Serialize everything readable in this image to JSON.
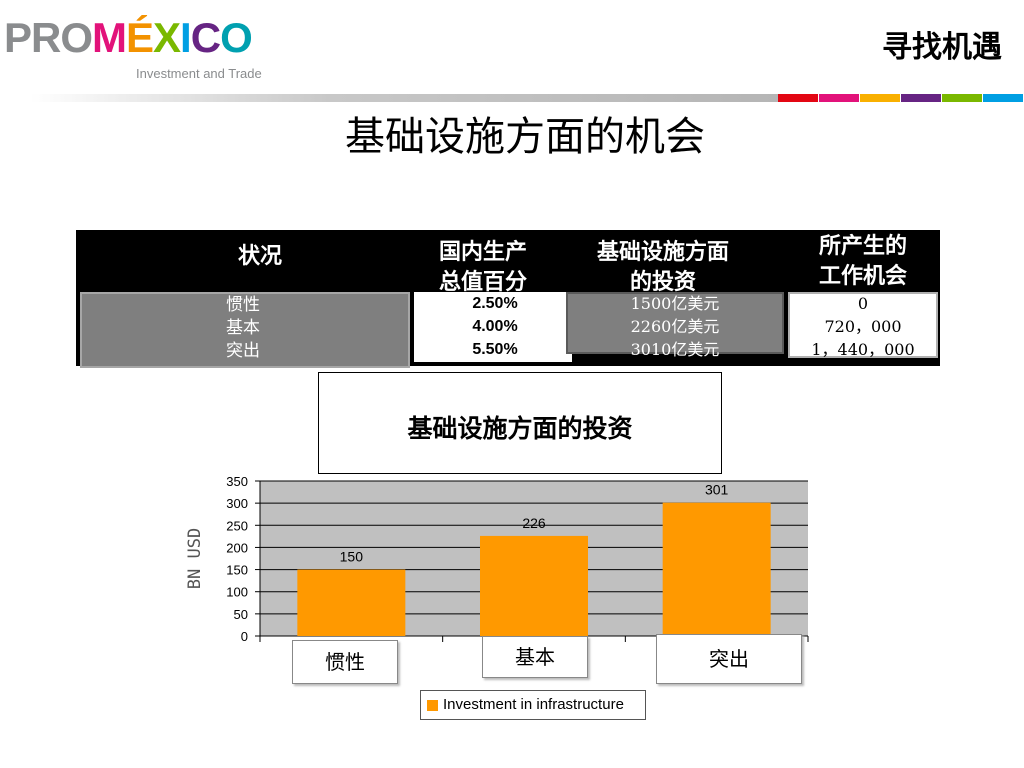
{
  "header": {
    "logo": {
      "word_pro": "PRO",
      "word_m": "M",
      "word_e": "É",
      "word_x": "X",
      "word_i": "I",
      "word_c": "C",
      "word_o": "O",
      "tagline": "Investment and Trade"
    },
    "corner_title": "寻找机遇",
    "rule_colors": [
      "#e30613",
      "#e2127a",
      "#f9b000",
      "#662483",
      "#7ab800",
      "#009fe3"
    ]
  },
  "page_title": "基础设施方面的机会",
  "table": {
    "headers": {
      "status": "状况",
      "gdp_line1": "国内生产",
      "gdp_line2": "总值百分",
      "inv_line1": "基础设施方面",
      "inv_line2": "的投资",
      "jobs_line1": "所产生的",
      "jobs_line2": "工作机会"
    },
    "rows": [
      {
        "status": "惯性",
        "gdp": "2.50%",
        "investment": "1500亿美元",
        "jobs": "0"
      },
      {
        "status": "基本",
        "gdp": "4.00%",
        "investment": "2260亿美元",
        "jobs": "720，000"
      },
      {
        "status": "突出",
        "gdp": "5.50%",
        "investment": "3010亿美元",
        "jobs": "1，440，000"
      }
    ]
  },
  "chart_data": {
    "type": "bar",
    "title": "基础设施方面的投资",
    "categories": [
      "惯性",
      "基本",
      "突出"
    ],
    "series": [
      {
        "name": "Investment in infrastructure",
        "values": [
          150,
          226,
          301
        ],
        "color": "#ff9900"
      }
    ],
    "data_labels": [
      "150",
      "226",
      "301"
    ],
    "ylabel": "BN  USD",
    "ylim": [
      0,
      350
    ],
    "yticks": [
      "0",
      "50",
      "100",
      "150",
      "200",
      "250",
      "300",
      "350"
    ],
    "grid": true,
    "plot_background": "#c0c0c0",
    "legend_position": "bottom"
  }
}
